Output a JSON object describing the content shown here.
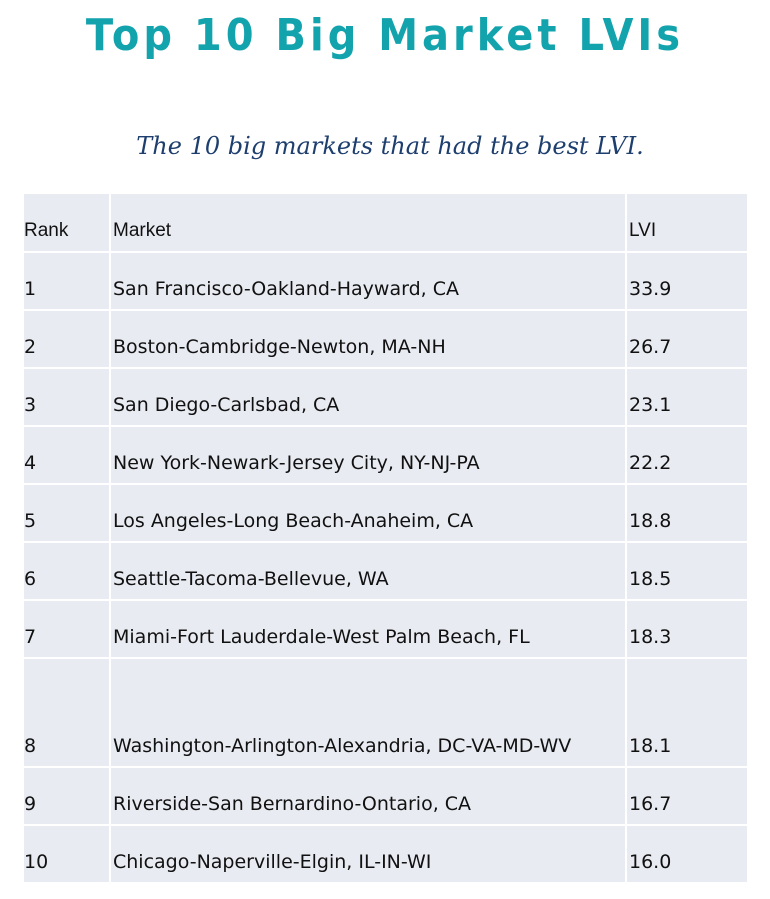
{
  "title": "Top 10 Big Market LVIs",
  "subtitle": "The 10 big markets that had the best LVI.",
  "table": {
    "headers": {
      "rank": "Rank",
      "market": "Market",
      "lvi": "LVI"
    },
    "rows": [
      {
        "rank": "1",
        "market": "San Francisco-Oakland-Hayward, CA",
        "lvi": "33.9"
      },
      {
        "rank": "2",
        "market": "Boston-Cambridge-Newton, MA-NH",
        "lvi": "26.7"
      },
      {
        "rank": "3",
        "market": "San Diego-Carlsbad, CA",
        "lvi": "23.1"
      },
      {
        "rank": "4",
        "market": "New York-Newark-Jersey City, NY-NJ-PA",
        "lvi": "22.2"
      },
      {
        "rank": "5",
        "market": "Los Angeles-Long Beach-Anaheim, CA",
        "lvi": "18.8"
      },
      {
        "rank": "6",
        "market": "Seattle-Tacoma-Bellevue, WA",
        "lvi": "18.5"
      },
      {
        "rank": "7",
        "market": "Miami-Fort Lauderdale-West Palm Beach, FL",
        "lvi": "18.3"
      },
      {
        "rank": "8",
        "market": "Washington-Arlington-Alexandria, DC-VA-MD-WV",
        "lvi": "18.1"
      },
      {
        "rank": "9",
        "market": "Riverside-San Bernardino-Ontario, CA",
        "lvi": "16.7"
      },
      {
        "rank": "10",
        "market": "Chicago-Naperville-Elgin, IL-IN-WI",
        "lvi": "16.0"
      }
    ]
  },
  "colors": {
    "title": "#13a3ad",
    "subtitle": "#1e3f6e",
    "cell_background": "#e8ebf2"
  }
}
